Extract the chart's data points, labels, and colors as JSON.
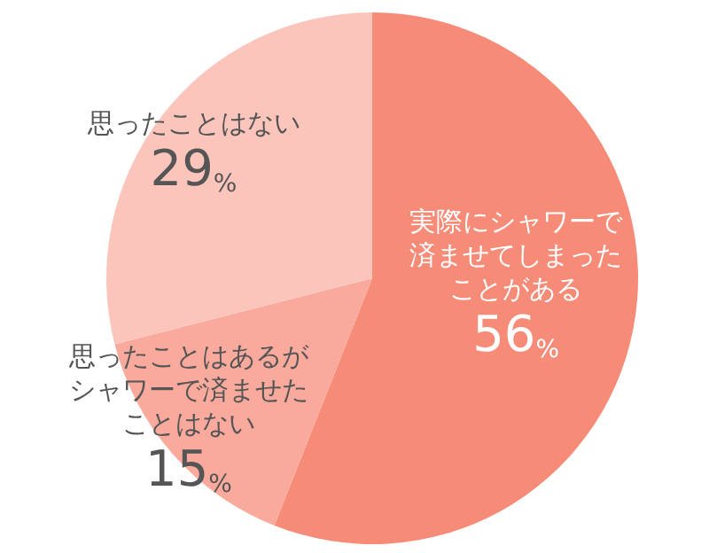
{
  "chart_data": {
    "type": "pie",
    "categories": [
      "実際にシャワーで済ませてしまったことがある",
      "思ったことはあるがシャワーで済ませたことはない",
      "思ったことはない"
    ],
    "values": [
      56,
      15,
      29
    ],
    "value_labels": [
      "56%",
      "15%",
      "29%"
    ],
    "colors": [
      "#f68b77",
      "#f9aa9c",
      "#fbc5bb"
    ]
  }
}
